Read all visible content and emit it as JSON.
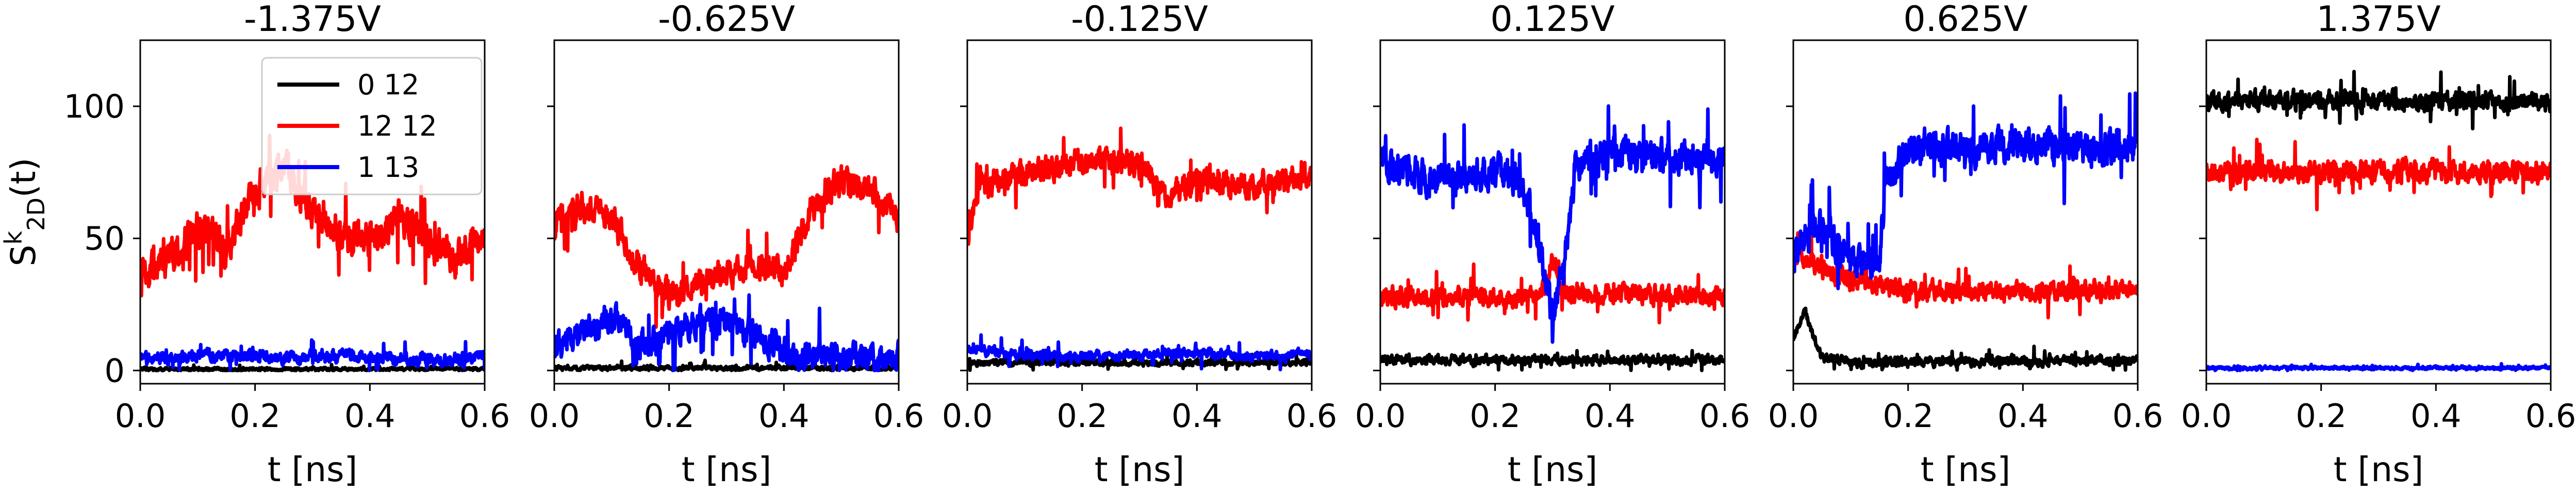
{
  "chart_data": [
    {
      "type": "line",
      "title": "-1.375V",
      "xlabel": "t [ns]",
      "ylabel": "S^k_2D(t)",
      "xlim": [
        0.0,
        0.6
      ],
      "ylim": [
        -5,
        125
      ],
      "xticks": [
        "0.0",
        "0.2",
        "0.4",
        "0.6"
      ],
      "yticks": [
        "0",
        "50",
        "100"
      ],
      "legend": {
        "placement": "top-right",
        "entries": [
          "0 12",
          "12 12",
          "1 13"
        ]
      },
      "series": [
        {
          "name": "0 12",
          "color": "#000000",
          "mean": 0.5,
          "noise": 1,
          "x": [
            0.0,
            0.6
          ],
          "y": [
            0.5,
            0.5
          ]
        },
        {
          "name": "12 12",
          "color": "#ff0000",
          "noise": 11,
          "x": [
            0.0,
            0.05,
            0.1,
            0.15,
            0.2,
            0.25,
            0.3,
            0.35,
            0.4,
            0.45,
            0.5,
            0.55,
            0.6
          ],
          "y": [
            35,
            42,
            55,
            45,
            68,
            78,
            60,
            52,
            48,
            58,
            50,
            42,
            52
          ]
        },
        {
          "name": "1 13",
          "color": "#0000ff",
          "noise": 4,
          "x": [
            0.0,
            0.1,
            0.2,
            0.3,
            0.4,
            0.5,
            0.6
          ],
          "y": [
            4,
            6,
            5,
            5,
            5,
            4,
            5
          ]
        }
      ]
    },
    {
      "type": "line",
      "title": "-0.625V",
      "xlabel": "t [ns]",
      "xlim": [
        0.0,
        0.6
      ],
      "ylim": [
        -5,
        125
      ],
      "xticks": [
        "0.0",
        "0.2",
        "0.4",
        "0.6"
      ],
      "series": [
        {
          "name": "0 12",
          "color": "#000000",
          "noise": 1.5,
          "x": [
            0.0,
            0.6
          ],
          "y": [
            1,
            1
          ]
        },
        {
          "name": "12 12",
          "color": "#ff0000",
          "noise": 9,
          "x": [
            0.0,
            0.05,
            0.1,
            0.15,
            0.2,
            0.25,
            0.3,
            0.35,
            0.4,
            0.45,
            0.5,
            0.55,
            0.6
          ],
          "y": [
            55,
            62,
            58,
            38,
            28,
            32,
            38,
            40,
            38,
            62,
            72,
            68,
            58
          ]
        },
        {
          "name": "1 13",
          "color": "#0000ff",
          "noise": 9,
          "x": [
            0.0,
            0.05,
            0.1,
            0.15,
            0.2,
            0.25,
            0.3,
            0.35,
            0.4,
            0.45,
            0.5,
            0.55,
            0.6
          ],
          "y": [
            8,
            15,
            20,
            10,
            14,
            18,
            20,
            12,
            8,
            6,
            5,
            5,
            6
          ]
        }
      ]
    },
    {
      "type": "line",
      "title": "-0.125V",
      "xlabel": "t [ns]",
      "xlim": [
        0.0,
        0.6
      ],
      "ylim": [
        -5,
        125
      ],
      "xticks": [
        "0.0",
        "0.2",
        "0.4",
        "0.6"
      ],
      "series": [
        {
          "name": "0 12",
          "color": "#000000",
          "noise": 2,
          "x": [
            0.0,
            0.6
          ],
          "y": [
            3,
            3
          ]
        },
        {
          "name": "12 12",
          "color": "#ff0000",
          "noise": 8,
          "x": [
            0.0,
            0.02,
            0.1,
            0.2,
            0.3,
            0.35,
            0.4,
            0.5,
            0.6
          ],
          "y": [
            50,
            70,
            75,
            80,
            78,
            65,
            72,
            70,
            74
          ]
        },
        {
          "name": "1 13",
          "color": "#0000ff",
          "noise": 3,
          "x": [
            0.0,
            0.1,
            0.2,
            0.3,
            0.4,
            0.5,
            0.6
          ],
          "y": [
            8,
            6,
            5,
            6,
            7,
            5,
            6
          ]
        }
      ]
    },
    {
      "type": "line",
      "title": "0.125V",
      "xlabel": "t [ns]",
      "xlim": [
        0.0,
        0.6
      ],
      "ylim": [
        -5,
        125
      ],
      "xticks": [
        "0.0",
        "0.2",
        "0.4",
        "0.6"
      ],
      "series": [
        {
          "name": "0 12",
          "color": "#000000",
          "noise": 3,
          "x": [
            0.0,
            0.6
          ],
          "y": [
            4,
            4
          ]
        },
        {
          "name": "12 12",
          "color": "#ff0000",
          "noise": 6,
          "x": [
            0.0,
            0.28,
            0.3,
            0.32,
            0.6
          ],
          "y": [
            28,
            28,
            42,
            30,
            28
          ]
        },
        {
          "name": "1 13",
          "color": "#0000ff",
          "noise": 11,
          "x": [
            0.0,
            0.1,
            0.2,
            0.25,
            0.28,
            0.3,
            0.32,
            0.34,
            0.4,
            0.5,
            0.6
          ],
          "y": [
            78,
            72,
            75,
            70,
            45,
            20,
            40,
            78,
            82,
            80,
            80
          ]
        }
      ]
    },
    {
      "type": "line",
      "title": "0.625V",
      "xlabel": "t [ns]",
      "xlim": [
        0.0,
        0.6
      ],
      "ylim": [
        -5,
        125
      ],
      "xticks": [
        "0.0",
        "0.2",
        "0.4",
        "0.6"
      ],
      "series": [
        {
          "name": "0 12",
          "color": "#000000",
          "noise": 3,
          "x": [
            0.0,
            0.02,
            0.05,
            0.1,
            0.6
          ],
          "y": [
            12,
            22,
            5,
            3,
            4
          ]
        },
        {
          "name": "12 12",
          "color": "#ff0000",
          "noise": 6,
          "x": [
            0.0,
            0.05,
            0.1,
            0.15,
            0.2,
            0.6
          ],
          "y": [
            45,
            38,
            34,
            32,
            30,
            30
          ]
        },
        {
          "name": "1 13",
          "color": "#0000ff",
          "noise": 11,
          "x": [
            0.0,
            0.05,
            0.1,
            0.15,
            0.16,
            0.2,
            0.3,
            0.4,
            0.5,
            0.6
          ],
          "y": [
            45,
            55,
            42,
            40,
            70,
            85,
            84,
            85,
            83,
            85
          ]
        }
      ]
    },
    {
      "type": "line",
      "title": "1.375V",
      "xlabel": "t [ns]",
      "xlim": [
        0.0,
        0.6
      ],
      "ylim": [
        -5,
        125
      ],
      "xticks": [
        "0.0",
        "0.2",
        "0.4",
        "0.6"
      ],
      "series": [
        {
          "name": "0 12",
          "color": "#000000",
          "noise": 6,
          "x": [
            0.0,
            0.6
          ],
          "y": [
            102,
            102
          ]
        },
        {
          "name": "12 12",
          "color": "#ff0000",
          "noise": 7,
          "x": [
            0.0,
            0.6
          ],
          "y": [
            75,
            75
          ]
        },
        {
          "name": "1 13",
          "color": "#0000ff",
          "noise": 1,
          "x": [
            0.0,
            0.6
          ],
          "y": [
            1,
            1
          ]
        }
      ]
    }
  ]
}
